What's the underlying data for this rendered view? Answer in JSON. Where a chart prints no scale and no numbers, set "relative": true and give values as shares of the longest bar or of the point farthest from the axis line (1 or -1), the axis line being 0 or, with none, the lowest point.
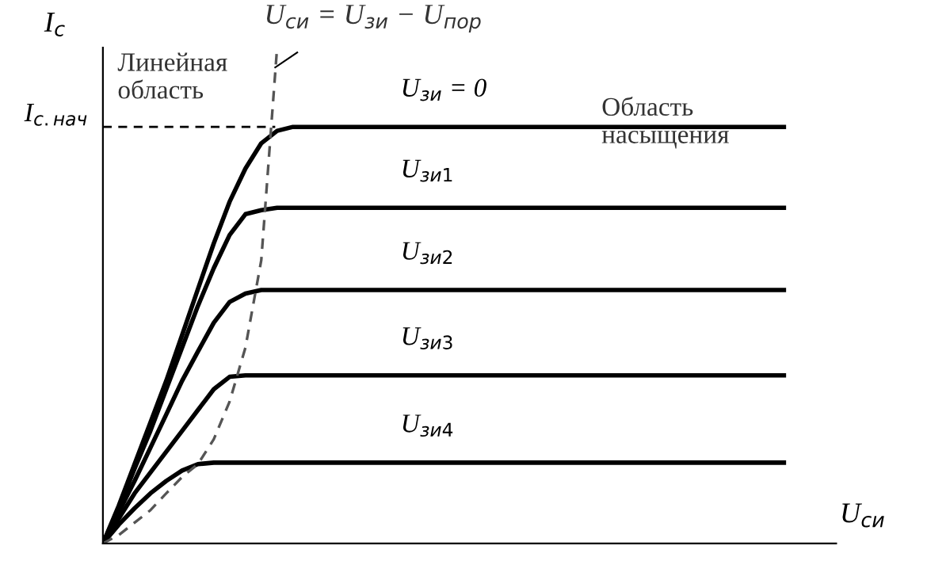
{
  "chart_data": {
    "type": "line",
    "relative": true,
    "legend": false,
    "marker": "none",
    "xlabel": "U$_{си}$",
    "ylabel": "I$_{с}$",
    "categories": [
      null,
      null,
      null,
      null,
      null,
      null,
      null,
      null,
      null,
      null,
      null,
      null,
      null,
      null,
      null,
      null,
      null,
      null,
      null,
      null,
      null,
      null,
      null,
      null,
      null,
      null,
      null,
      null,
      null,
      null,
      null,
      null,
      null,
      null,
      null,
      null,
      null,
      null,
      null,
      null,
      null,
      null,
      null,
      null,
      null,
      null,
      null
    ],
    "series": [
      {
        "name": "U$_{зи}$ = 0",
        "color": "#000000",
        "line_style": "solid",
        "values": [
          0,
          0.076,
          0.16,
          0.244,
          0.328,
          0.42,
          0.513,
          0.605,
          0.689,
          0.756,
          0.807,
          0.832,
          0.84,
          0.84,
          0.84,
          0.84,
          0.84,
          0.84,
          0.84,
          0.84,
          0.84,
          0.84,
          0.84,
          0.84,
          0.84,
          0.84,
          0.84,
          0.84,
          0.84,
          0.84,
          0.84,
          0.84,
          0.84,
          0.84,
          0.84,
          0.84,
          0.84,
          0.84,
          0.84,
          0.84,
          0.84,
          0.84,
          0.84,
          0.84,
          null,
          null,
          null
        ]
      },
      {
        "name": "U$_{зи1}$",
        "color": "#000000",
        "line_style": "solid",
        "values": [
          0,
          0.071,
          0.151,
          0.227,
          0.311,
          0.395,
          0.479,
          0.555,
          0.622,
          0.664,
          0.672,
          0.677,
          0.677,
          0.677,
          0.677,
          0.677,
          0.677,
          0.677,
          0.677,
          0.677,
          0.677,
          0.677,
          0.677,
          0.677,
          0.677,
          0.677,
          0.677,
          0.677,
          0.677,
          0.677,
          0.677,
          0.677,
          0.677,
          0.677,
          0.677,
          0.677,
          0.677,
          0.677,
          0.677,
          0.677,
          0.677,
          0.677,
          0.677,
          0.677,
          null,
          null,
          null
        ]
      },
      {
        "name": "U$_{зи2}$",
        "color": "#000000",
        "line_style": "solid",
        "values": [
          0,
          0.063,
          0.126,
          0.193,
          0.26,
          0.328,
          0.387,
          0.445,
          0.487,
          0.504,
          0.511,
          0.511,
          0.511,
          0.511,
          0.511,
          0.511,
          0.511,
          0.511,
          0.511,
          0.511,
          0.511,
          0.511,
          0.511,
          0.511,
          0.511,
          0.511,
          0.511,
          0.511,
          0.511,
          0.511,
          0.511,
          0.511,
          0.511,
          0.511,
          0.511,
          0.511,
          0.511,
          0.511,
          0.511,
          0.511,
          0.511,
          0.511,
          0.511,
          0.511,
          null,
          null,
          null
        ]
      },
      {
        "name": "U$_{зи3}$",
        "color": "#000000",
        "line_style": "solid",
        "values": [
          0,
          0.05,
          0.101,
          0.143,
          0.185,
          0.227,
          0.269,
          0.311,
          0.336,
          0.339,
          0.339,
          0.339,
          0.339,
          0.339,
          0.339,
          0.339,
          0.339,
          0.339,
          0.339,
          0.339,
          0.339,
          0.339,
          0.339,
          0.339,
          0.339,
          0.339,
          0.339,
          0.339,
          0.339,
          0.339,
          0.339,
          0.339,
          0.339,
          0.339,
          0.339,
          0.339,
          0.339,
          0.339,
          0.339,
          0.339,
          0.339,
          0.339,
          0.339,
          0.339,
          null,
          null,
          null
        ]
      },
      {
        "name": "U$_{зи4}$",
        "color": "#000000",
        "line_style": "solid",
        "values": [
          0,
          0.038,
          0.071,
          0.101,
          0.126,
          0.147,
          0.16,
          0.163,
          0.163,
          0.163,
          0.163,
          0.163,
          0.163,
          0.163,
          0.163,
          0.163,
          0.163,
          0.163,
          0.163,
          0.163,
          0.163,
          0.163,
          0.163,
          0.163,
          0.163,
          0.163,
          0.163,
          0.163,
          0.163,
          0.163,
          0.163,
          0.163,
          0.163,
          0.163,
          0.163,
          0.163,
          0.163,
          0.163,
          0.163,
          0.163,
          0.163,
          0.163,
          0.163,
          0.163,
          null,
          null,
          null
        ]
      },
      {
        "color": "#555555",
        "line_style": "dashed",
        "values": [
          0,
          0.017,
          0.042,
          0.067,
          0.101,
          0.134,
          0.16,
          0.21,
          0.286,
          0.395,
          0.571,
          1.0,
          null,
          null,
          null,
          null,
          null,
          null,
          null,
          null,
          null,
          null,
          null,
          null,
          null,
          null,
          null,
          null,
          null,
          null,
          null,
          null,
          null,
          null,
          null,
          null,
          null,
          null,
          null,
          null,
          null,
          null,
          null,
          null,
          null,
          null,
          null
        ]
      }
    ],
    "ref_lines": [
      {
        "axis": "y",
        "value": 0.84,
        "label": "I$_{с.нач}$",
        "color": "#000000",
        "line_style": "dashed"
      }
    ],
    "annotations": [
      "Линейная\nобласть",
      "Область\nнасыщения",
      "U$_{си}$ = U$_{зи}$ − U$_{пор}$"
    ]
  }
}
